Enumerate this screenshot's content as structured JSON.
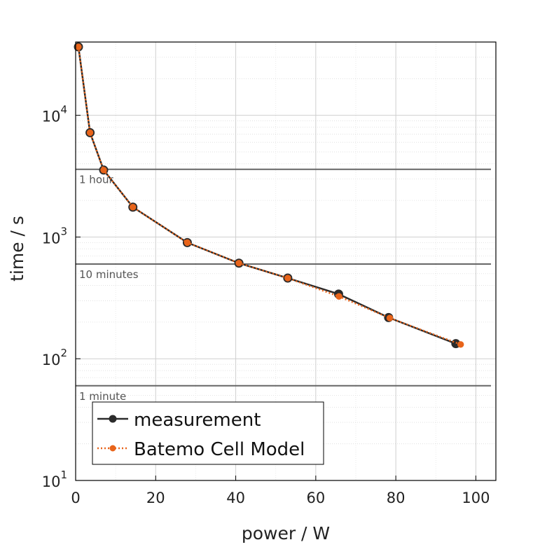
{
  "chart_data": {
    "type": "line",
    "xlabel": "power / W",
    "ylabel": "time / s",
    "xlim": [
      0,
      105
    ],
    "ylim": [
      10,
      40000
    ],
    "yscale": "log",
    "grid": true,
    "legend_position": "bottom-left",
    "x_ticks": [
      "0",
      "20",
      "40",
      "60",
      "80",
      "100"
    ],
    "y_ticks": [
      {
        "base": "10",
        "exp": "1",
        "value": 10
      },
      {
        "base": "10",
        "exp": "2",
        "value": 100
      },
      {
        "base": "10",
        "exp": "3",
        "value": 1000
      },
      {
        "base": "10",
        "exp": "4",
        "value": 10000
      }
    ],
    "reference_lines": [
      {
        "label": "1 hour",
        "value": 3600
      },
      {
        "label": "10 minutes",
        "value": 600
      },
      {
        "label": "1 minute",
        "value": 60
      }
    ],
    "series": [
      {
        "name": "measurement",
        "color": "#2b2b2b",
        "style": "solid",
        "x": [
          0.7,
          3.6,
          7.0,
          14.3,
          27.9,
          40.8,
          53.0,
          65.7,
          78.2,
          95.0
        ],
        "y": [
          36500,
          7200,
          3550,
          1760,
          900,
          610,
          460,
          340,
          218,
          133
        ]
      },
      {
        "name": "Batemo Cell Model",
        "color": "#e8641a",
        "style": "dotted",
        "x": [
          0.7,
          3.6,
          7.0,
          14.3,
          27.9,
          40.8,
          53.0,
          65.8,
          78.5,
          96.2
        ],
        "y": [
          36500,
          7200,
          3550,
          1760,
          900,
          610,
          460,
          325,
          216,
          131
        ]
      }
    ]
  }
}
